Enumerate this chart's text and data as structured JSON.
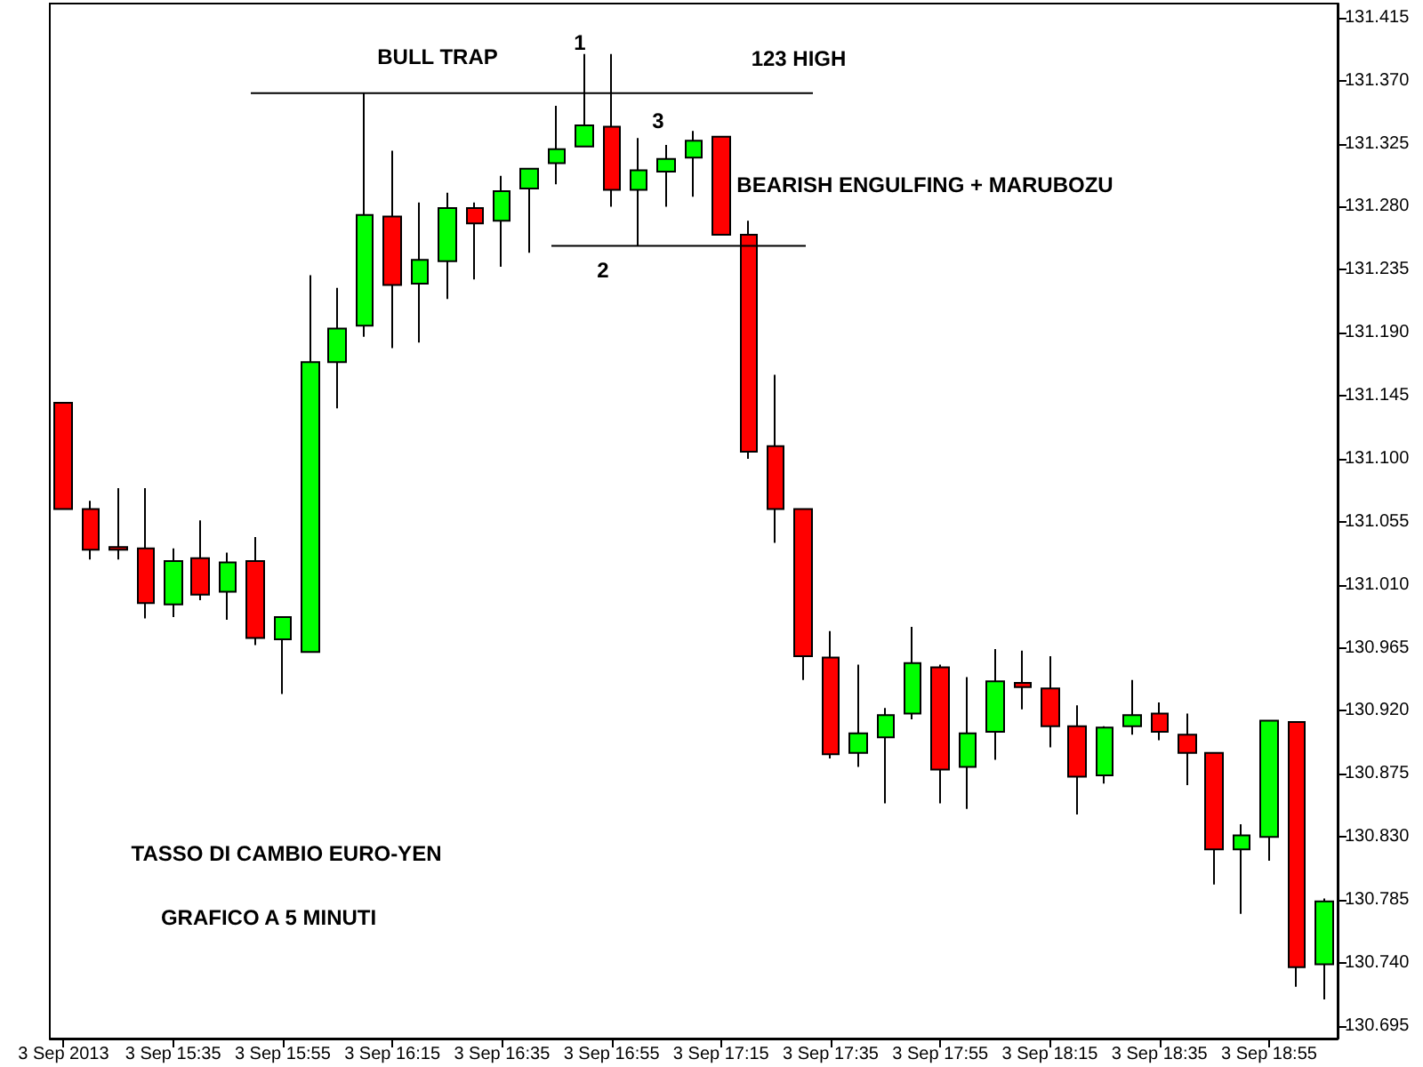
{
  "chart_data": {
    "type": "candlestick",
    "categories": [
      "3 Sep 2013",
      null,
      null,
      null,
      "3 Sep 15:35",
      null,
      null,
      null,
      "3 Sep 15:55",
      null,
      null,
      null,
      "3 Sep 16:15",
      null,
      null,
      null,
      "3 Sep 16:35",
      null,
      null,
      null,
      "3 Sep 16:55",
      null,
      null,
      null,
      "3 Sep 17:15",
      null,
      null,
      null,
      "3 Sep 17:35",
      null,
      null,
      null,
      "3 Sep 17:55",
      null,
      null,
      null,
      "3 Sep 18:15",
      null,
      null,
      null,
      "3 Sep 18:35",
      null,
      null,
      null,
      "3 Sep 18:55",
      null,
      null
    ],
    "ohlc": [
      [
        131.14,
        131.14,
        131.064,
        131.064
      ],
      [
        131.064,
        131.07,
        131.028,
        131.035
      ],
      [
        131.037,
        131.079,
        131.028,
        131.035
      ],
      [
        131.036,
        131.079,
        130.986,
        130.997
      ],
      [
        130.996,
        131.036,
        130.987,
        131.027
      ],
      [
        131.029,
        131.056,
        130.999,
        131.003
      ],
      [
        131.005,
        131.033,
        130.985,
        131.026
      ],
      [
        131.027,
        131.044,
        130.967,
        130.972
      ],
      [
        130.971,
        130.987,
        130.932,
        130.987
      ],
      [
        130.962,
        131.231,
        130.962,
        131.169
      ],
      [
        131.169,
        131.222,
        131.136,
        131.193
      ],
      [
        131.195,
        131.361,
        131.187,
        131.274
      ],
      [
        131.273,
        131.32,
        131.179,
        131.224
      ],
      [
        131.225,
        131.283,
        131.183,
        131.242
      ],
      [
        131.241,
        131.29,
        131.214,
        131.279
      ],
      [
        131.279,
        131.283,
        131.228,
        131.268
      ],
      [
        131.27,
        131.302,
        131.237,
        131.291
      ],
      [
        131.293,
        131.307,
        131.247,
        131.307
      ],
      [
        131.311,
        131.352,
        131.296,
        131.321
      ],
      [
        131.323,
        131.389,
        131.323,
        131.338
      ],
      [
        131.337,
        131.389,
        131.28,
        131.292
      ],
      [
        131.292,
        131.329,
        131.252,
        131.306
      ],
      [
        131.305,
        131.324,
        131.28,
        131.314
      ],
      [
        131.315,
        131.334,
        131.287,
        131.327
      ],
      [
        131.33,
        131.33,
        131.26,
        131.26
      ],
      [
        131.26,
        131.27,
        131.1,
        131.105
      ],
      [
        131.109,
        131.16,
        131.04,
        131.064
      ],
      [
        131.064,
        131.064,
        130.942,
        130.959
      ],
      [
        130.958,
        130.977,
        130.886,
        130.889
      ],
      [
        130.89,
        130.953,
        130.88,
        130.904
      ],
      [
        130.901,
        130.922,
        130.854,
        130.917
      ],
      [
        130.918,
        130.98,
        130.914,
        130.954
      ],
      [
        130.951,
        130.953,
        130.854,
        130.878
      ],
      [
        130.88,
        130.944,
        130.85,
        130.904
      ],
      [
        130.905,
        130.964,
        130.885,
        130.941
      ],
      [
        130.94,
        130.963,
        130.921,
        130.937
      ],
      [
        130.936,
        130.959,
        130.894,
        130.909
      ],
      [
        130.909,
        130.924,
        130.846,
        130.873
      ],
      [
        130.874,
        130.909,
        130.868,
        130.908
      ],
      [
        130.909,
        130.942,
        130.903,
        130.917
      ],
      [
        130.918,
        130.926,
        130.899,
        130.905
      ],
      [
        130.903,
        130.918,
        130.867,
        130.89
      ],
      [
        130.89,
        130.89,
        130.796,
        130.821
      ],
      [
        130.821,
        130.839,
        130.775,
        130.831
      ],
      [
        130.83,
        130.913,
        130.813,
        130.913
      ],
      [
        130.912,
        130.912,
        130.723,
        130.737
      ],
      [
        130.739,
        130.786,
        130.714,
        130.784
      ]
    ],
    "colors": [
      "#ff0000",
      "#ff0000",
      "#ff0000",
      "#ff0000",
      "#00ff00",
      "#ff0000",
      "#00ff00",
      "#ff0000",
      "#00ff00",
      "#00ff00",
      "#00ff00",
      "#00ff00",
      "#ff0000",
      "#00ff00",
      "#00ff00",
      "#ff0000",
      "#00ff00",
      "#00ff00",
      "#00ff00",
      "#00ff00",
      "#ff0000",
      "#00ff00",
      "#00ff00",
      "#00ff00",
      "#ff0000",
      "#ff0000",
      "#ff0000",
      "#ff0000",
      "#ff0000",
      "#00ff00",
      "#00ff00",
      "#00ff00",
      "#ff0000",
      "#00ff00",
      "#00ff00",
      "#ff0000",
      "#ff0000",
      "#ff0000",
      "#00ff00",
      "#00ff00",
      "#ff0000",
      "#ff0000",
      "#ff0000",
      "#00ff00",
      "#00ff00",
      "#ff0000",
      "#00ff00"
    ],
    "ylim": [
      130.686,
      131.425
    ],
    "yticks": [
      {
        "value": 131.415,
        "label": "131.415"
      },
      {
        "value": 131.37,
        "label": "131.370"
      },
      {
        "value": 131.325,
        "label": "131.325"
      },
      {
        "value": 131.28,
        "label": "131.280"
      },
      {
        "value": 131.235,
        "label": "131.235"
      },
      {
        "value": 131.19,
        "label": "131.190"
      },
      {
        "value": 131.145,
        "label": "131.145"
      },
      {
        "value": 131.1,
        "label": "131.100"
      },
      {
        "value": 131.055,
        "label": "131.055"
      },
      {
        "value": 131.01,
        "label": "131.010"
      },
      {
        "value": 130.965,
        "label": "130.965"
      },
      {
        "value": 130.92,
        "label": "130.920"
      },
      {
        "value": 130.875,
        "label": "130.875"
      },
      {
        "value": 130.83,
        "label": "130.830"
      },
      {
        "value": 130.785,
        "label": "130.785"
      },
      {
        "value": 130.74,
        "label": "130.740"
      },
      {
        "value": 130.695,
        "label": "130.695"
      }
    ],
    "ref_lines": [
      {
        "axis": "y",
        "value": 131.361,
        "color": "#000000"
      },
      {
        "axis": "y",
        "value": 131.252,
        "color": "#000000"
      }
    ],
    "annotations": [
      "BULL TRAP",
      "123 HIGH",
      "1",
      "2",
      "3",
      "BEARISH ENGULFING + MARUBOZU",
      "TASSO DI CAMBIO EURO-YEN",
      "GRAFICO A 5 MINUTI"
    ],
    "grid": false
  }
}
